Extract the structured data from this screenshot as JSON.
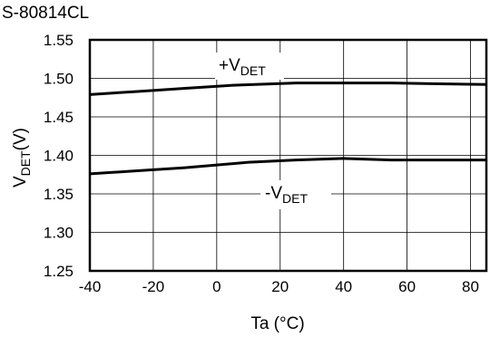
{
  "chart_data": {
    "type": "line",
    "title": "S-80814CL",
    "xlabel": "Ta (°C)",
    "ylabel": {
      "main": "V",
      "sub": "DET",
      "rest": "(V)"
    },
    "xlim": [
      -40,
      85
    ],
    "ylim": [
      1.25,
      1.55
    ],
    "x_ticks": [
      -40,
      -20,
      0,
      20,
      40,
      60,
      80
    ],
    "y_ticks": [
      1.25,
      1.3,
      1.35,
      1.4,
      1.45,
      1.5,
      1.55
    ],
    "x_tick_labels": [
      "-40",
      "-20",
      "0",
      "20",
      "40",
      "60",
      "80"
    ],
    "y_tick_labels": [
      "1.25",
      "1.30",
      "1.35",
      "1.40",
      "1.45",
      "1.50",
      "1.55"
    ],
    "grid": true,
    "series": [
      {
        "name": {
          "main": "+V",
          "sub": "DET"
        },
        "x": [
          -40,
          -25,
          -10,
          5,
          25,
          40,
          55,
          70,
          85
        ],
        "y": [
          1.479,
          1.483,
          1.487,
          1.491,
          1.494,
          1.494,
          1.494,
          1.493,
          1.492
        ]
      },
      {
        "name": {
          "main": "-V",
          "sub": "DET"
        },
        "x": [
          -40,
          -25,
          -10,
          10,
          25,
          40,
          55,
          70,
          85
        ],
        "y": [
          1.376,
          1.38,
          1.384,
          1.391,
          1.394,
          1.396,
          1.394,
          1.394,
          1.394
        ]
      }
    ]
  }
}
